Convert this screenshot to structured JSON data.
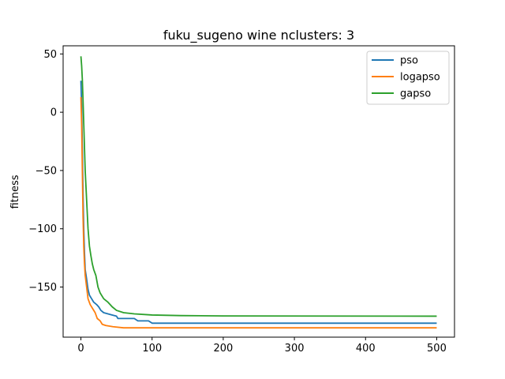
{
  "chart_data": {
    "type": "line",
    "title": "fuku_sugeno wine nclusters: 3",
    "xlabel": "",
    "ylabel": "fitness",
    "xlim": [
      -25,
      525
    ],
    "ylim": [
      -193,
      57
    ],
    "xticks": [
      0,
      100,
      200,
      300,
      400,
      500
    ],
    "yticks": [
      50,
      0,
      -50,
      -100,
      -150
    ],
    "grid": false,
    "legend_position": "top-right",
    "series": [
      {
        "name": "pso",
        "color": "#1f77b4",
        "points": [
          [
            0,
            27
          ],
          [
            1,
            5
          ],
          [
            2,
            -30
          ],
          [
            3,
            -70
          ],
          [
            4,
            -100
          ],
          [
            5,
            -120
          ],
          [
            6,
            -135
          ],
          [
            8,
            -143
          ],
          [
            10,
            -152
          ],
          [
            12,
            -157
          ],
          [
            15,
            -160
          ],
          [
            18,
            -163
          ],
          [
            22,
            -165
          ],
          [
            25,
            -167
          ],
          [
            28,
            -170
          ],
          [
            32,
            -172
          ],
          [
            38,
            -173
          ],
          [
            44,
            -174
          ],
          [
            50,
            -175
          ],
          [
            52,
            -177
          ],
          [
            65,
            -177
          ],
          [
            75,
            -177
          ],
          [
            80,
            -179
          ],
          [
            95,
            -179
          ],
          [
            100,
            -181
          ],
          [
            110,
            -181
          ],
          [
            500,
            -181
          ]
        ]
      },
      {
        "name": "logapso",
        "color": "#ff7f0e",
        "points": [
          [
            0,
            13
          ],
          [
            1,
            -10
          ],
          [
            2,
            -50
          ],
          [
            3,
            -90
          ],
          [
            4,
            -115
          ],
          [
            5,
            -130
          ],
          [
            6,
            -140
          ],
          [
            8,
            -150
          ],
          [
            10,
            -160
          ],
          [
            13,
            -165
          ],
          [
            16,
            -168
          ],
          [
            20,
            -172
          ],
          [
            23,
            -177
          ],
          [
            27,
            -179
          ],
          [
            30,
            -182
          ],
          [
            35,
            -183
          ],
          [
            45,
            -184
          ],
          [
            60,
            -185
          ],
          [
            80,
            -185
          ],
          [
            500,
            -185
          ]
        ]
      },
      {
        "name": "gapso",
        "color": "#2ca02c",
        "points": [
          [
            0,
            48
          ],
          [
            1,
            40
          ],
          [
            2,
            28
          ],
          [
            3,
            10
          ],
          [
            4,
            -10
          ],
          [
            5,
            -30
          ],
          [
            6,
            -50
          ],
          [
            8,
            -75
          ],
          [
            10,
            -100
          ],
          [
            12,
            -115
          ],
          [
            14,
            -123
          ],
          [
            16,
            -130
          ],
          [
            18,
            -135
          ],
          [
            21,
            -140
          ],
          [
            24,
            -150
          ],
          [
            27,
            -155
          ],
          [
            32,
            -160
          ],
          [
            38,
            -163
          ],
          [
            44,
            -167
          ],
          [
            50,
            -170
          ],
          [
            60,
            -172
          ],
          [
            75,
            -173
          ],
          [
            100,
            -174
          ],
          [
            140,
            -174.5
          ],
          [
            200,
            -174.8
          ],
          [
            500,
            -175
          ]
        ]
      }
    ]
  }
}
